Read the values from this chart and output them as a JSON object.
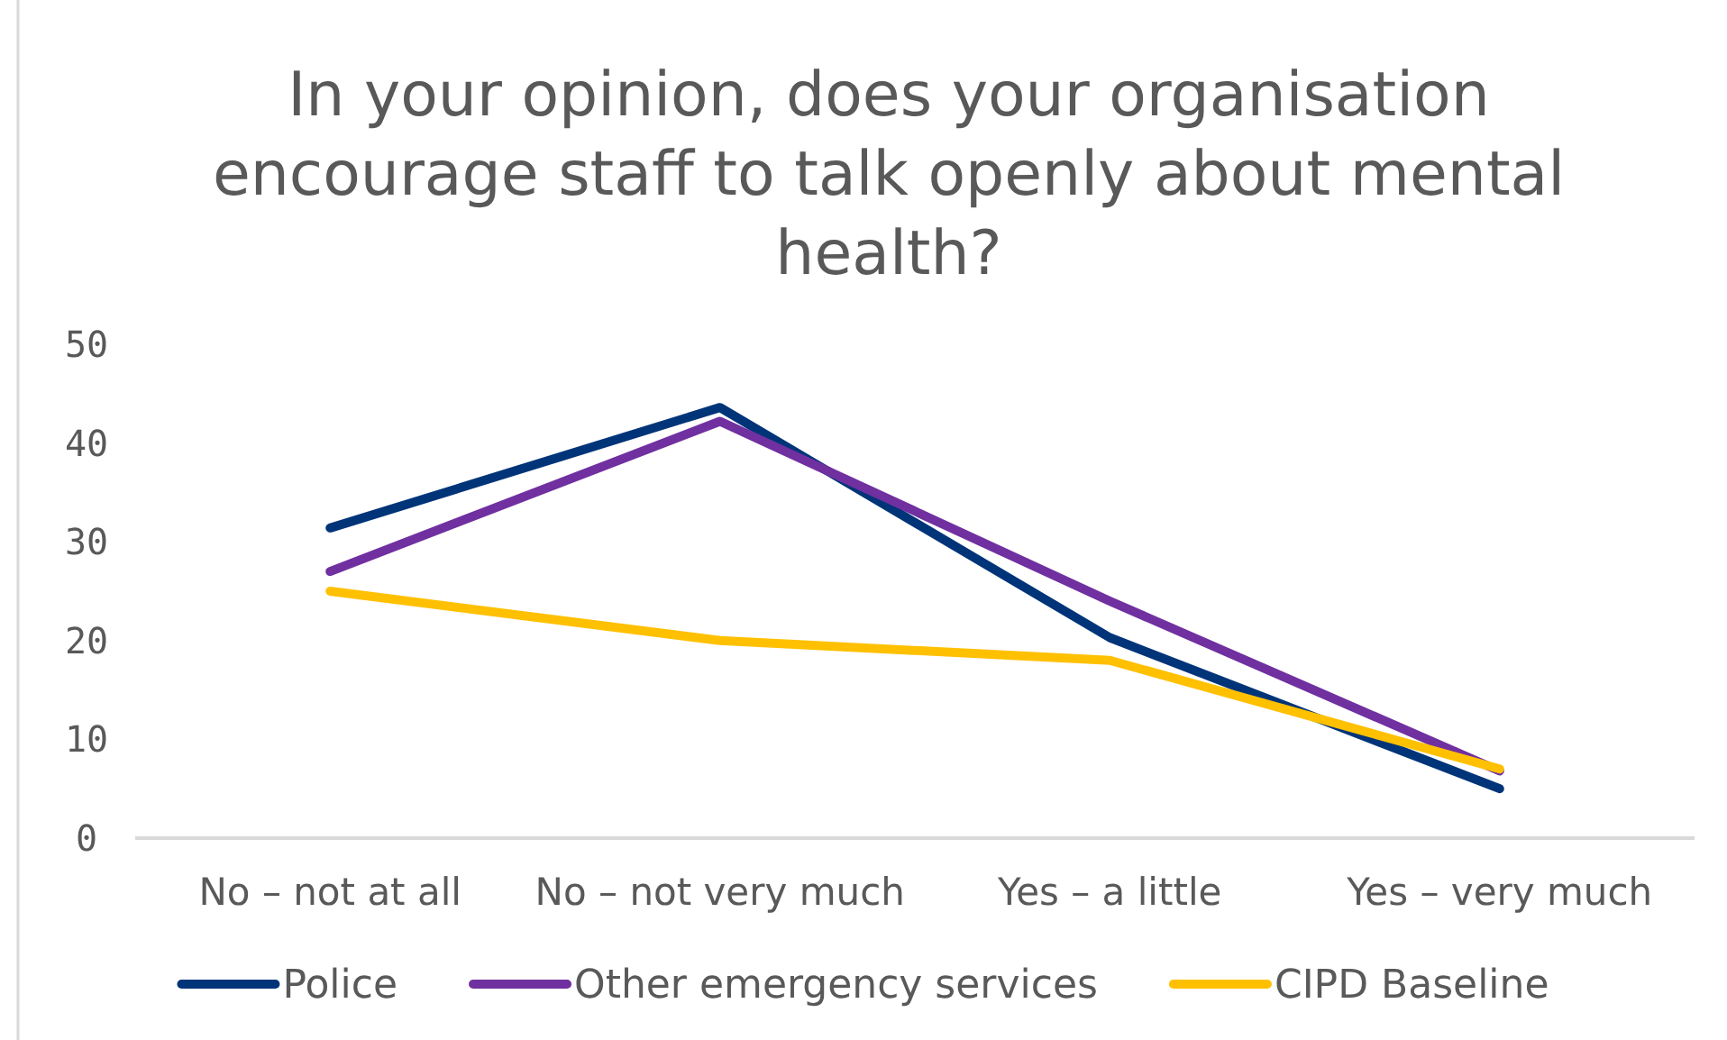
{
  "chart_data": {
    "type": "line",
    "title": "In your opinion, does your organisation encourage staff to talk openly about mental health?",
    "categories": [
      "No – not at all",
      "No – not very much",
      "Yes – a little",
      "Yes – very much"
    ],
    "series": [
      {
        "name": "Police",
        "color": "#003478",
        "values": [
          31.4,
          43.6,
          20.3,
          5
        ]
      },
      {
        "name": "Other emergency services",
        "color": "#7030a0",
        "values": [
          27,
          42.2,
          24,
          6.8
        ]
      },
      {
        "name": "CIPD Baseline",
        "color": "#ffc000",
        "values": [
          25,
          20,
          18,
          7
        ]
      }
    ],
    "ylim": [
      0,
      50
    ],
    "yticks": [
      0,
      10,
      20,
      30,
      40,
      50
    ],
    "grid": false,
    "legend": "bottom",
    "marker": "none",
    "line_style": "solid"
  }
}
